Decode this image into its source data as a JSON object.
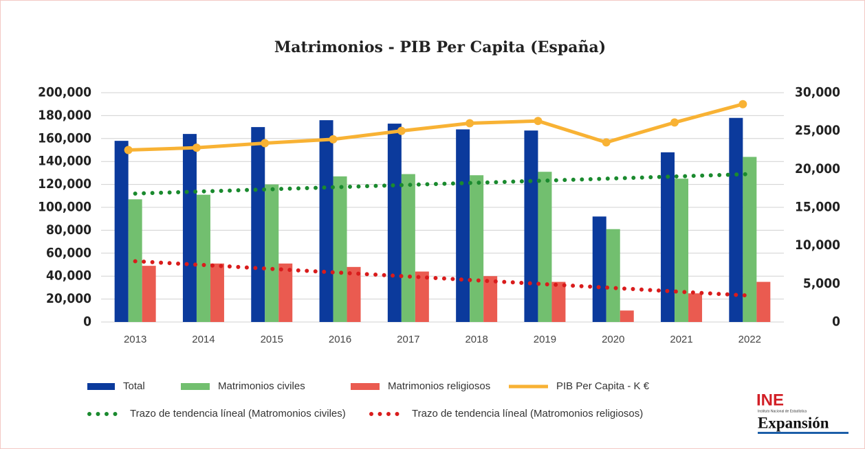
{
  "chart_data": {
    "type": "bar",
    "title": "Matrimonios - PIB Per Capita (España)",
    "categories": [
      "2013",
      "2014",
      "2015",
      "2016",
      "2017",
      "2018",
      "2019",
      "2020",
      "2021",
      "2022"
    ],
    "series": [
      {
        "name": "Total",
        "type": "bar",
        "color": "#0b3a9c",
        "values": [
          158000,
          164000,
          170000,
          176000,
          173000,
          168000,
          167000,
          92000,
          148000,
          178000
        ]
      },
      {
        "name": "Matrimonios civiles",
        "type": "bar",
        "color": "#72bf6f",
        "values": [
          107000,
          111000,
          120000,
          127000,
          129000,
          128000,
          131000,
          81000,
          125000,
          144000
        ]
      },
      {
        "name": "Matrimonios religiosos",
        "type": "bar",
        "color": "#ea5b50",
        "values": [
          49000,
          51000,
          51000,
          48000,
          44000,
          40000,
          35000,
          10000,
          25000,
          35000
        ]
      },
      {
        "name": "PIB Per Capita - K €",
        "type": "line",
        "axis": "y2",
        "color": "#f8b234",
        "values": [
          22500,
          22800,
          23400,
          23900,
          25000,
          26000,
          26300,
          23500,
          26100,
          28500
        ]
      },
      {
        "name": "Trazo de tendencia líneal (Matromonios civiles)",
        "type": "line",
        "style": "dotted",
        "color": "#1a8a2e",
        "values": [
          112000,
          113900,
          115800,
          117700,
          119600,
          121400,
          123300,
          125200,
          127100,
          129000
        ]
      },
      {
        "name": "Trazo de tendencia líneal (Matromonios religiosos)",
        "type": "line",
        "style": "dotted",
        "color": "#d91c1c",
        "values": [
          53000,
          49700,
          46300,
          43000,
          39700,
          36300,
          33000,
          29700,
          26300,
          23000
        ]
      }
    ],
    "ylim": [
      0,
      200000
    ],
    "yticks": [
      0,
      {
        "value": 20000,
        "label": "20,000"
      },
      {
        "value": 40000,
        "label": "40,000"
      },
      {
        "value": 60000,
        "label": "60,000"
      },
      {
        "value": 80000,
        "label": "80,000"
      },
      {
        "value": 100000,
        "label": "100,000"
      },
      {
        "value": 120000,
        "label": "120,000"
      },
      {
        "value": 140000,
        "label": "140,000"
      },
      {
        "value": 160000,
        "label": "160,000"
      },
      {
        "value": 180000,
        "label": "180,000"
      },
      {
        "value": 200000,
        "label": "200,000"
      }
    ],
    "y2lim": [
      0,
      30000
    ],
    "y2ticks": [
      0,
      {
        "value": 5000,
        "label": "5,000"
      },
      {
        "value": 10000,
        "label": "10,000"
      },
      {
        "value": 15000,
        "label": "15,000"
      },
      {
        "value": 20000,
        "label": "20,000"
      },
      {
        "value": 25000,
        "label": "25,000"
      },
      {
        "value": 30000,
        "label": "30,000"
      }
    ],
    "grid": true
  },
  "logos": {
    "ine": "INE",
    "ine_sub": "Instituto Nacional de Estadística",
    "expansion": "Expansión"
  }
}
